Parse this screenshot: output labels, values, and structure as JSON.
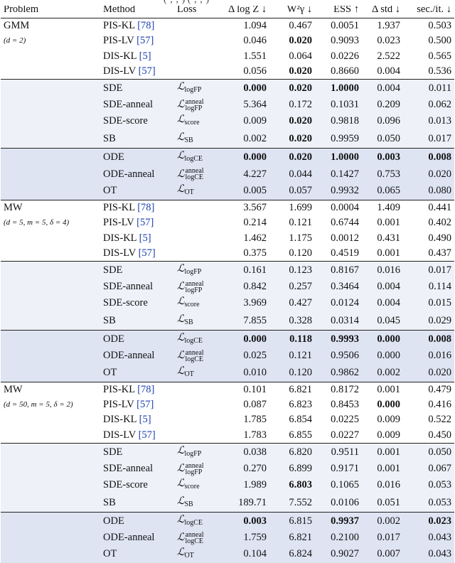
{
  "header_fragment": "(·,·,·)   (·,·,·)",
  "columns": [
    "Problem",
    "Method",
    "Loss",
    "Δ log Z ↓",
    "W²γ ↓",
    "ESS ↑",
    "Δ std ↓",
    "sec./it. ↓"
  ],
  "problems": [
    {
      "name": "GMM",
      "sub": "(d = 2)"
    },
    {
      "name": "MW",
      "sub": "(d = 5, m = 5, δ = 4)"
    },
    {
      "name": "MW",
      "sub": "(d = 50, m = 5, δ = 2)"
    }
  ],
  "rows": [
    [
      "PIS-KL [78]",
      "",
      "1.094",
      "0.467",
      "0.0051",
      "1.937",
      "0.503"
    ],
    [
      "PIS-LV [57]",
      "",
      "0.046",
      "0.020",
      "0.9093",
      "0.023",
      "0.500"
    ],
    [
      "DIS-KL [5]",
      "",
      "1.551",
      "0.064",
      "0.0226",
      "2.522",
      "0.565"
    ],
    [
      "DIS-LV [57]",
      "",
      "0.056",
      "0.020",
      "0.8660",
      "0.004",
      "0.536"
    ],
    [
      "SDE",
      "logFP",
      "0.000",
      "0.020",
      "1.0000",
      "0.004",
      "0.011"
    ],
    [
      "SDE-anneal",
      "anneal|logFP",
      "5.364",
      "0.172",
      "0.1031",
      "0.209",
      "0.062"
    ],
    [
      "SDE-score",
      "score",
      "0.009",
      "0.020",
      "0.9818",
      "0.096",
      "0.013"
    ],
    [
      "SB",
      "SB",
      "0.002",
      "0.020",
      "0.9959",
      "0.050",
      "0.017"
    ],
    [
      "ODE",
      "logCE",
      "0.000",
      "0.020",
      "1.0000",
      "0.003",
      "0.008"
    ],
    [
      "ODE-anneal",
      "anneal|logCE",
      "4.227",
      "0.044",
      "0.1427",
      "0.753",
      "0.020"
    ],
    [
      "OT",
      "OT",
      "0.005",
      "0.057",
      "0.9932",
      "0.065",
      "0.080"
    ],
    [
      "PIS-KL [78]",
      "",
      "3.567",
      "1.699",
      "0.0004",
      "1.409",
      "0.441"
    ],
    [
      "PIS-LV [57]",
      "",
      "0.214",
      "0.121",
      "0.6744",
      "0.001",
      "0.402"
    ],
    [
      "DIS-KL [5]",
      "",
      "1.462",
      "1.175",
      "0.0012",
      "0.431",
      "0.490"
    ],
    [
      "DIS-LV [57]",
      "",
      "0.375",
      "0.120",
      "0.4519",
      "0.001",
      "0.437"
    ],
    [
      "SDE",
      "logFP",
      "0.161",
      "0.123",
      "0.8167",
      "0.016",
      "0.017"
    ],
    [
      "SDE-anneal",
      "anneal|logFP",
      "0.842",
      "0.257",
      "0.3464",
      "0.004",
      "0.114"
    ],
    [
      "SDE-score",
      "score",
      "3.969",
      "0.427",
      "0.0124",
      "0.004",
      "0.015"
    ],
    [
      "SB",
      "SB",
      "7.855",
      "0.328",
      "0.0314",
      "0.045",
      "0.029"
    ],
    [
      "ODE",
      "logCE",
      "0.000",
      "0.118",
      "0.9993",
      "0.000",
      "0.008"
    ],
    [
      "ODE-anneal",
      "anneal|logCE",
      "0.025",
      "0.121",
      "0.9506",
      "0.000",
      "0.016"
    ],
    [
      "OT",
      "OT",
      "0.010",
      "0.120",
      "0.9862",
      "0.002",
      "0.020"
    ],
    [
      "PIS-KL [78]",
      "",
      "0.101",
      "6.821",
      "0.8172",
      "0.001",
      "0.479"
    ],
    [
      "PIS-LV [57]",
      "",
      "0.087",
      "6.823",
      "0.8453",
      "0.000",
      "0.416"
    ],
    [
      "DIS-KL [5]",
      "",
      "1.785",
      "6.854",
      "0.0225",
      "0.009",
      "0.522"
    ],
    [
      "DIS-LV [57]",
      "",
      "1.783",
      "6.855",
      "0.0227",
      "0.009",
      "0.450"
    ],
    [
      "SDE",
      "logFP",
      "0.038",
      "6.820",
      "0.9511",
      "0.001",
      "0.050"
    ],
    [
      "SDE-anneal",
      "anneal|logFP",
      "0.270",
      "6.899",
      "0.9171",
      "0.001",
      "0.067"
    ],
    [
      "SDE-score",
      "score",
      "1.989",
      "6.803",
      "0.1065",
      "0.016",
      "0.053"
    ],
    [
      "SB",
      "SB",
      "189.71",
      "7.552",
      "0.0106",
      "0.051",
      "0.053"
    ],
    [
      "ODE",
      "logCE",
      "0.003",
      "6.815",
      "0.9937",
      "0.002",
      "0.023"
    ],
    [
      "ODE-anneal",
      "anneal|logCE",
      "1.759",
      "6.821",
      "0.2100",
      "0.017",
      "0.043"
    ],
    [
      "OT",
      "OT",
      "0.104",
      "6.824",
      "0.9027",
      "0.007",
      "0.043"
    ]
  ],
  "bold_cells": [
    [
      1,
      3
    ],
    [
      3,
      3
    ],
    [
      4,
      2
    ],
    [
      4,
      3
    ],
    [
      4,
      4
    ],
    [
      6,
      3
    ],
    [
      7,
      3
    ],
    [
      8,
      2
    ],
    [
      8,
      3
    ],
    [
      8,
      4
    ],
    [
      8,
      5
    ],
    [
      8,
      6
    ],
    [
      19,
      2
    ],
    [
      19,
      3
    ],
    [
      19,
      4
    ],
    [
      19,
      5
    ],
    [
      19,
      6
    ],
    [
      23,
      5
    ],
    [
      28,
      3
    ],
    [
      30,
      2
    ],
    [
      30,
      4
    ],
    [
      30,
      6
    ]
  ]
}
